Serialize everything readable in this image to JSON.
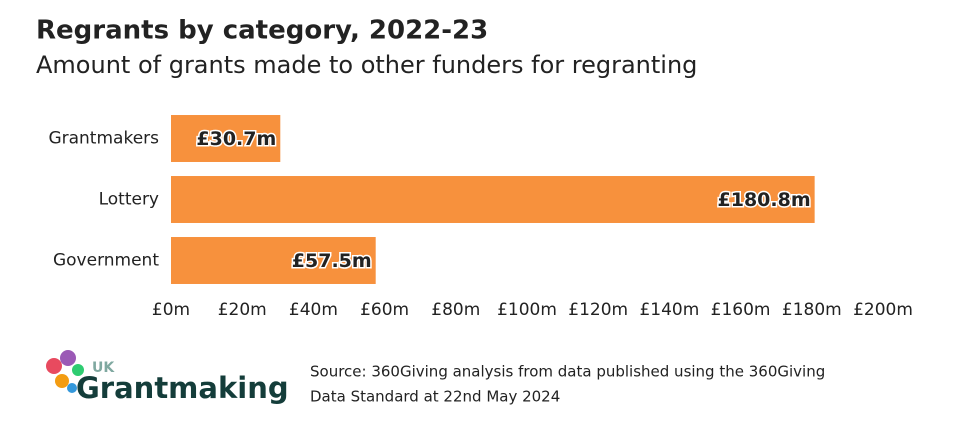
{
  "chart_data": {
    "type": "barh",
    "title": "Regrants by category, 2022-23",
    "subtitle": "Amount of grants made to other funders for regranting",
    "categories": [
      "Grantmakers",
      "Lottery",
      "Government"
    ],
    "values": [
      30.7,
      180.8,
      57.5
    ],
    "value_labels": [
      "£30.7m",
      "£180.8m",
      "£57.5m"
    ],
    "color": "#f7913d",
    "xlim": [
      0,
      200
    ],
    "xticks": [
      {
        "value": 0,
        "label": "£0m"
      },
      {
        "value": 20,
        "label": "£20m"
      },
      {
        "value": 40,
        "label": "£40m"
      },
      {
        "value": 60,
        "label": "£60m"
      },
      {
        "value": 80,
        "label": "£80m"
      },
      {
        "value": 100,
        "label": "£100m"
      },
      {
        "value": 120,
        "label": "£120m"
      },
      {
        "value": 140,
        "label": "£140m"
      },
      {
        "value": 160,
        "label": "£160m"
      },
      {
        "value": 180,
        "label": "£180m"
      },
      {
        "value": 200,
        "label": "£200m"
      }
    ],
    "grid": false
  },
  "logo": {
    "prefix": "UK",
    "name": "Grantmaking"
  },
  "source": [
    "Source: 360Giving analysis from data published using the 360Giving",
    "Data Standard at 22nd May 2024"
  ]
}
